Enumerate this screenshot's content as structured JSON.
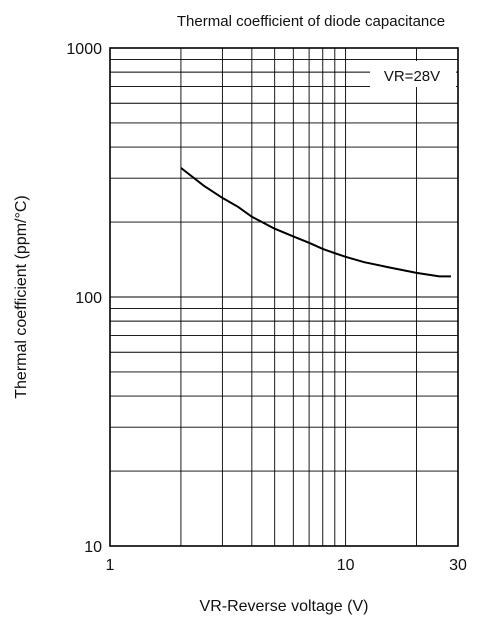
{
  "chart_data": {
    "type": "line",
    "title": "Thermal coefficient of diode capacitance",
    "xlabel": "VR-Reverse voltage (V)",
    "ylabel": "Thermal coefficient (ppm/°C)",
    "x_scale": "log",
    "y_scale": "log",
    "xlim": [
      1,
      30
    ],
    "ylim": [
      10,
      1000
    ],
    "x_ticks": [
      "1",
      "10",
      "30"
    ],
    "y_ticks": [
      "10",
      "100",
      "1000"
    ],
    "grid": true,
    "annotation": "VR=28V",
    "series": [
      {
        "x": [
          2,
          2.5,
          3,
          3.5,
          4,
          5,
          6,
          7,
          8,
          9,
          10,
          12,
          15,
          20,
          25,
          28
        ],
        "y": [
          330,
          280,
          250,
          230,
          210,
          188,
          175,
          165,
          156,
          150,
          145,
          138,
          132,
          125,
          121,
          121
        ]
      }
    ]
  }
}
